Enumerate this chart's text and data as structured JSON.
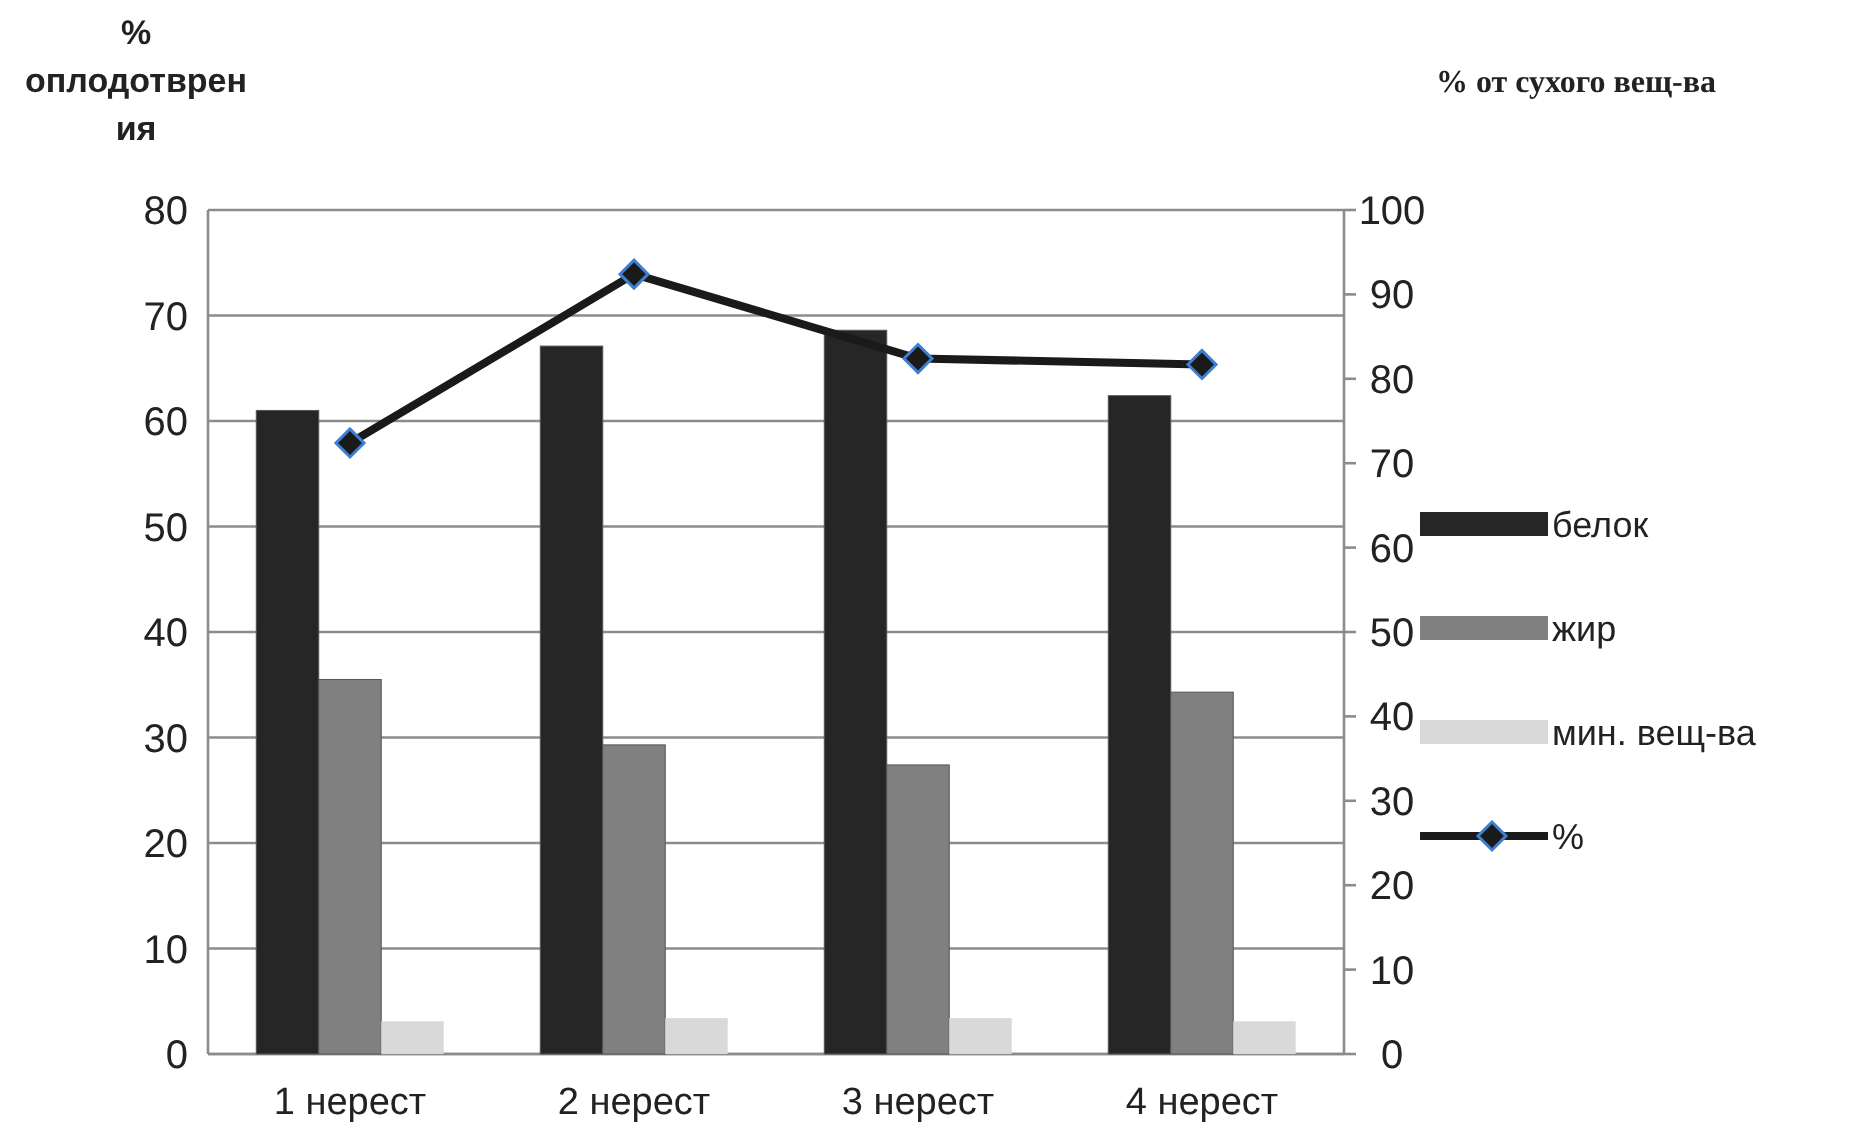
{
  "chart_data": {
    "type": "bar",
    "ylabel": "% оплодотврения",
    "y2label": "% от сухого вещ-ва",
    "categories": [
      "1 нерест",
      "2 нерест",
      "3 нерест",
      "4 нерест"
    ],
    "series": [
      {
        "name": "белок",
        "color": "#262626",
        "values": [
          61.0,
          67.1,
          68.6,
          62.4
        ]
      },
      {
        "name": "жир",
        "color": "#808080",
        "values": [
          35.5,
          29.3,
          27.4,
          34.3
        ]
      },
      {
        "name": "мин. вещ-ва",
        "color": "#d9d9d9",
        "values": [
          3.1,
          3.4,
          3.4,
          3.1
        ]
      },
      {
        "name": "%",
        "type": "line",
        "axis": "y2",
        "color": "#1a1a1a",
        "marker": "diamond",
        "values": [
          72.4,
          92.4,
          82.4,
          81.7
        ]
      }
    ],
    "ylim": [
      0,
      80
    ],
    "yticks": [
      0,
      10,
      20,
      30,
      40,
      50,
      60,
      70,
      80
    ],
    "y2lim": [
      0,
      100
    ],
    "y2ticks": [
      0,
      10,
      20,
      30,
      40,
      50,
      60,
      70,
      80,
      90,
      100
    ],
    "grid": "y",
    "legend": "right"
  }
}
